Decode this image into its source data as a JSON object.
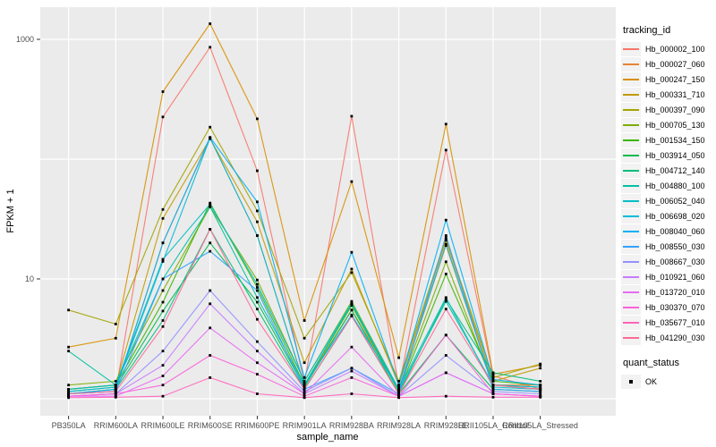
{
  "figure": {
    "bg": "#FFFFFF",
    "panel_bg": "#EBEBEB",
    "grid_color": "#FFFFFF",
    "tick_color": "#333333",
    "tick_label_color": "#4D4D4D"
  },
  "chart_data": {
    "type": "line",
    "title": "",
    "xlabel": "sample_name",
    "ylabel": "FPKM + 1",
    "yscale": "log10",
    "ylim": [
      0.95,
      1900
    ],
    "grid": true,
    "legend_position": "right",
    "y_ticks": [
      {
        "label": "1000",
        "value": 1000
      },
      {
        "label": "10",
        "value": 10
      }
    ],
    "y_gridlines": [
      1,
      10,
      100,
      1000
    ],
    "x_categories": [
      "PB350LA",
      "RRIM600LA",
      "RRIM600LE",
      "RRIM600SE",
      "RRIM600PE",
      "RRIM901LA",
      "RRIM928BA",
      "RRIM928LA",
      "RRIM928LE",
      "RRII105LA_Control",
      "RRII105LA_Stressed"
    ],
    "marker": {
      "shape": "square",
      "color": "#000000",
      "size": 2.8,
      "legend_label": "OK"
    },
    "series": [
      {
        "name": "Hb_000002_100",
        "color": "#F8766D",
        "values": [
          1.1,
          1.15,
          225,
          860,
          80,
          1.35,
          228,
          1.25,
          119,
          1.55,
          1.2
        ]
      },
      {
        "name": "Hb_000027_060",
        "color": "#EA8331",
        "values": [
          1.1,
          1.2,
          20,
          150,
          23,
          1.3,
          5.5,
          1.2,
          19,
          1.3,
          1.3
        ]
      },
      {
        "name": "Hb_000247_150",
        "color": "#D89000",
        "values": [
          2.7,
          3.2,
          366,
          1350,
          217,
          4.5,
          65,
          2.2,
          196,
          1.6,
          1.9
        ]
      },
      {
        "name": "Hb_000331_710",
        "color": "#C09B00",
        "values": [
          1.2,
          1.3,
          32,
          148,
          30,
          2.0,
          12.1,
          1.3,
          21,
          1.4,
          1.8
        ]
      },
      {
        "name": "Hb_000397_090",
        "color": "#A3A500",
        "values": [
          5.5,
          4.2,
          38,
          185,
          37,
          3.2,
          11.3,
          1.4,
          22,
          1.5,
          1.95
        ]
      },
      {
        "name": "Hb_000705_130",
        "color": "#7CAE00",
        "values": [
          1.3,
          1.4,
          8.0,
          40,
          9.8,
          1.4,
          6.5,
          1.2,
          13.9,
          1.3,
          1.2
        ]
      },
      {
        "name": "Hb_001534_150",
        "color": "#39B600",
        "values": [
          1.2,
          1.3,
          6.4,
          43,
          8.5,
          1.3,
          6.0,
          1.15,
          11.0,
          1.4,
          1.3
        ]
      },
      {
        "name": "Hb_003914_050",
        "color": "#00BB4E",
        "values": [
          1.15,
          1.25,
          5.4,
          20,
          6.4,
          1.25,
          5.5,
          1.1,
          3.4,
          1.2,
          1.15
        ]
      },
      {
        "name": "Hb_004712_140",
        "color": "#00BF7D",
        "values": [
          1.1,
          1.2,
          4.5,
          26,
          5.6,
          1.2,
          4.9,
          1.1,
          6.8,
          1.65,
          1.4
        ]
      },
      {
        "name": "Hb_004880_100",
        "color": "#00C1A3",
        "values": [
          2.5,
          1.3,
          10.0,
          40,
          7.0,
          1.3,
          6.2,
          1.15,
          6.5,
          1.3,
          1.25
        ]
      },
      {
        "name": "Hb_006052_040",
        "color": "#00BFC4",
        "values": [
          1.2,
          1.3,
          14.6,
          42,
          9.0,
          1.4,
          6.3,
          1.2,
          7.0,
          1.25,
          1.2
        ]
      },
      {
        "name": "Hb_006698_020",
        "color": "#00BBDA",
        "values": [
          1.15,
          1.25,
          14.0,
          150,
          23,
          1.3,
          5.0,
          1.2,
          19.5,
          1.3,
          1.25
        ]
      },
      {
        "name": "Hb_008040_060",
        "color": "#00B0F6",
        "values": [
          1.1,
          1.2,
          20.0,
          152,
          44,
          1.5,
          16.7,
          1.3,
          31,
          1.45,
          1.3
        ]
      },
      {
        "name": "Hb_008550_030",
        "color": "#35A2FF",
        "values": [
          1.1,
          1.15,
          10.0,
          17,
          8.0,
          1.2,
          1.8,
          1.1,
          23,
          1.2,
          1.15
        ]
      },
      {
        "name": "Hb_008667_030",
        "color": "#9590FF",
        "values": [
          1.05,
          1.1,
          2.5,
          8.0,
          3.0,
          1.15,
          1.8,
          1.05,
          2.3,
          1.15,
          1.1
        ]
      },
      {
        "name": "Hb_010921_060",
        "color": "#C77CFF",
        "values": [
          1.05,
          1.1,
          1.9,
          6.2,
          2.5,
          1.1,
          1.7,
          1.05,
          1.65,
          1.1,
          1.05
        ]
      },
      {
        "name": "Hb_013720_010",
        "color": "#E76BF3",
        "values": [
          1.05,
          1.05,
          1.55,
          3.9,
          2.0,
          1.1,
          2.7,
          1.05,
          1.65,
          1.1,
          1.05
        ]
      },
      {
        "name": "Hb_030370_070",
        "color": "#FA62DB",
        "values": [
          1.05,
          1.1,
          1.3,
          2.3,
          1.6,
          1.05,
          1.5,
          1.05,
          3.4,
          1.1,
          1.05
        ]
      },
      {
        "name": "Hb_035677_010",
        "color": "#FF62BC",
        "values": [
          1.02,
          1.03,
          1.05,
          1.5,
          1.1,
          1.02,
          1.1,
          1.02,
          1.05,
          1.03,
          1.03
        ]
      },
      {
        "name": "Hb_041290_030",
        "color": "#FF6A98",
        "values": [
          1.1,
          1.15,
          4.0,
          26,
          4.6,
          1.2,
          4.9,
          1.1,
          5.6,
          1.3,
          1.2
        ]
      }
    ]
  },
  "legend": {
    "color_legend_title": "tracking_id",
    "shape_legend_title": "quant_status",
    "shape_items": [
      {
        "label": "OK",
        "marker": "black-square"
      }
    ],
    "key_bg": "#F2F2F2"
  }
}
